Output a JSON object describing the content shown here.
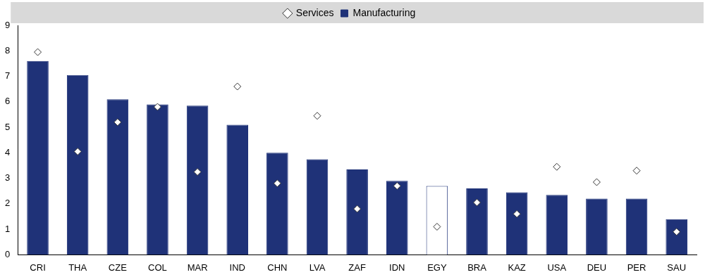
{
  "chart_data": {
    "type": "bar",
    "categories": [
      "CRI",
      "THA",
      "CZE",
      "COL",
      "MAR",
      "IND",
      "CHN",
      "LVA",
      "ZAF",
      "IDN",
      "EGY",
      "BRA",
      "KAZ",
      "USA",
      "DEU",
      "PER",
      "SAU"
    ],
    "series": [
      {
        "name": "Manufacturing",
        "type": "bar",
        "color": "#1f3278",
        "colors": [
          "#1f3278",
          "#1f3278",
          "#1f3278",
          "#1f3278",
          "#1f3278",
          "#1f3278",
          "#1f3278",
          "#1f3278",
          "#1f3278",
          "#1f3278",
          "#ffffff",
          "#1f3278",
          "#1f3278",
          "#1f3278",
          "#1f3278",
          "#1f3278",
          "#1f3278"
        ],
        "values": [
          7.6,
          7.05,
          6.1,
          5.9,
          5.85,
          5.1,
          4.0,
          3.75,
          3.35,
          2.9,
          2.7,
          2.6,
          2.45,
          2.35,
          2.2,
          2.2,
          1.4
        ]
      },
      {
        "name": "Services",
        "type": "scatter",
        "marker": "diamond",
        "color": "#ffffff",
        "values": [
          7.95,
          4.05,
          5.2,
          5.8,
          3.25,
          6.6,
          2.8,
          5.45,
          1.8,
          2.7,
          1.1,
          2.05,
          1.6,
          3.45,
          2.85,
          3.3,
          0.9
        ]
      }
    ],
    "ylim": [
      0,
      9
    ],
    "yticks": [
      0,
      1,
      2,
      3,
      4,
      5,
      6,
      7,
      8,
      9
    ],
    "grid": false,
    "legend": "top"
  }
}
